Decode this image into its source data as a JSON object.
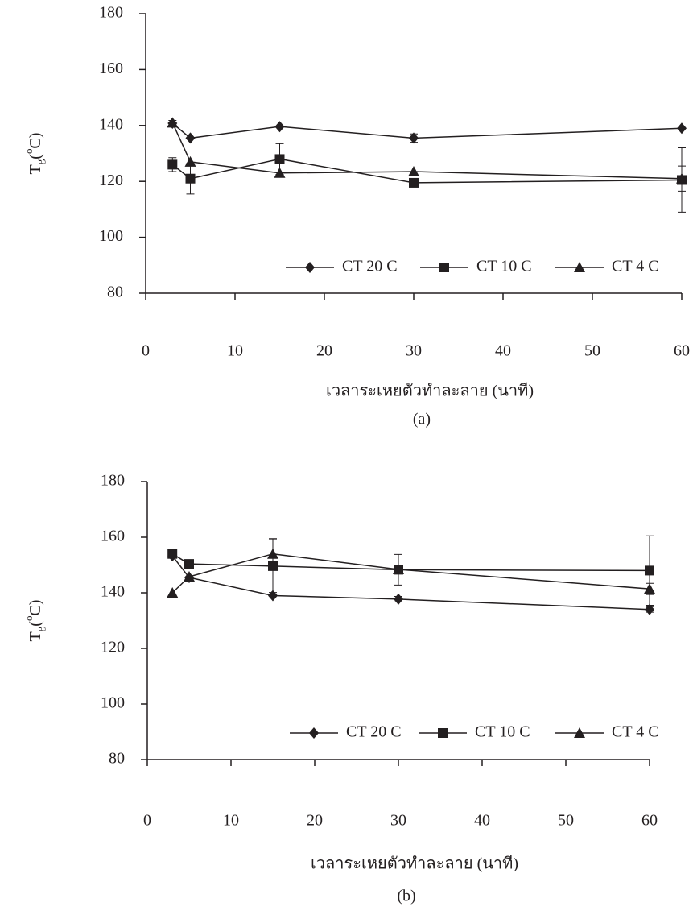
{
  "chart_data": [
    {
      "type": "line",
      "x": [
        3,
        5,
        15,
        30,
        60
      ],
      "xlim": [
        0,
        60
      ],
      "xticks": [
        0,
        10,
        20,
        30,
        40,
        50,
        60
      ],
      "ylim": [
        80,
        180
      ],
      "yticks": [
        80,
        100,
        120,
        140,
        160,
        180
      ],
      "ylabel": [
        "T",
        "g",
        "(",
        "o",
        "C)"
      ],
      "xlabel": "เวลาระเหยตัวทำละลาย (นาที)",
      "caption": "(a)",
      "legend": "bottom",
      "series": [
        {
          "name": "CT 20 C",
          "color": "#231f20",
          "marker": "diamond",
          "values": [
            140.8,
            135.5,
            139.6,
            135.5,
            139
          ],
          "errors": [
            1,
            null,
            null,
            1.5,
            null
          ]
        },
        {
          "name": "CT 10 C",
          "color": "#231f20",
          "marker": "square",
          "values": [
            126,
            121,
            128,
            119.5,
            120.5
          ],
          "errors": [
            2.5,
            5.5,
            5.5,
            null,
            11.5
          ]
        },
        {
          "name": "CT 4 C",
          "color": "#231f20",
          "marker": "triangle",
          "values": [
            141,
            127,
            123,
            123.5,
            121
          ],
          "errors": [
            null,
            null,
            null,
            null,
            4.5
          ]
        }
      ]
    },
    {
      "type": "line",
      "x": [
        3,
        5,
        15,
        30,
        60
      ],
      "xlim": [
        0,
        60
      ],
      "xticks": [
        0,
        10,
        20,
        30,
        40,
        50,
        60
      ],
      "ylim": [
        80,
        180
      ],
      "yticks": [
        80,
        100,
        120,
        140,
        160,
        180
      ],
      "ylabel": [
        "T",
        "g",
        "(",
        "o",
        "C)"
      ],
      "xlabel": "เวลาระเหยตัวทำละลาย (นาที)",
      "caption": "(b)",
      "legend": "bottom",
      "series": [
        {
          "name": "CT 20 C",
          "color": "#231f20",
          "marker": "diamond",
          "values": [
            153.3,
            145.5,
            139,
            137.7,
            134
          ],
          "errors": [
            null,
            null,
            null,
            1,
            1
          ]
        },
        {
          "name": "CT 10 C",
          "color": "#231f20",
          "marker": "square",
          "values": [
            154,
            150.4,
            149.6,
            148.3,
            148
          ],
          "errors": [
            null,
            null,
            9.5,
            5.5,
            12.5
          ]
        },
        {
          "name": "CT 4 C",
          "color": "#231f20",
          "marker": "triangle",
          "values": [
            140,
            145.8,
            154,
            148.4,
            141.4
          ],
          "errors": [
            null,
            null,
            5.5,
            null,
            2
          ]
        }
      ]
    }
  ]
}
